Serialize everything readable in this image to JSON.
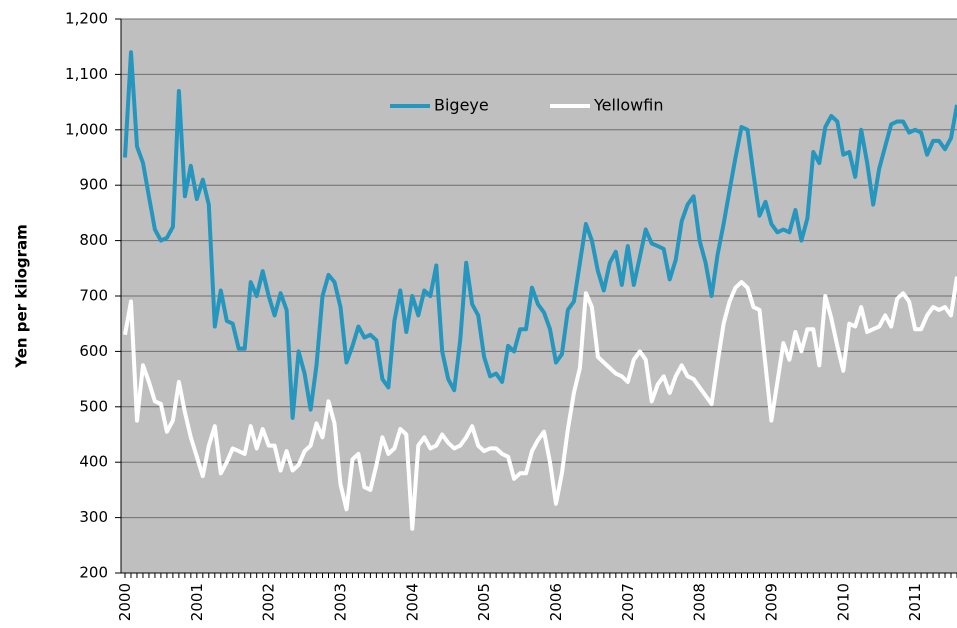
{
  "chart_data": {
    "type": "line",
    "y_label": "Yen per kilogram",
    "categories": [
      "2000",
      null,
      null,
      null,
      null,
      null,
      null,
      null,
      null,
      null,
      null,
      null,
      "2001",
      null,
      null,
      null,
      null,
      null,
      null,
      null,
      null,
      null,
      null,
      null,
      "2002",
      null,
      null,
      null,
      null,
      null,
      null,
      null,
      null,
      null,
      null,
      null,
      "2003",
      null,
      null,
      null,
      null,
      null,
      null,
      null,
      null,
      null,
      null,
      null,
      "2004",
      null,
      null,
      null,
      null,
      null,
      null,
      null,
      null,
      null,
      null,
      null,
      "2005",
      null,
      null,
      null,
      null,
      null,
      null,
      null,
      null,
      null,
      null,
      null,
      "2006",
      null,
      null,
      null,
      null,
      null,
      null,
      null,
      null,
      null,
      null,
      null,
      "2007",
      null,
      null,
      null,
      null,
      null,
      null,
      null,
      null,
      null,
      null,
      null,
      "2008",
      null,
      null,
      null,
      null,
      null,
      null,
      null,
      null,
      null,
      null,
      null,
      "2009",
      null,
      null,
      null,
      null,
      null,
      null,
      null,
      null,
      null,
      null,
      null,
      "2010",
      null,
      null,
      null,
      null,
      null,
      null,
      null,
      null,
      null,
      null,
      null,
      "2011",
      null,
      null,
      null,
      null,
      null,
      null,
      null
    ],
    "series": [
      {
        "name": "Bigeye",
        "color": "#2596be",
        "values": [
          950,
          1140,
          970,
          940,
          880,
          820,
          800,
          805,
          825,
          1070,
          880,
          935,
          875,
          910,
          865,
          645,
          710,
          655,
          650,
          605,
          605,
          725,
          700,
          745,
          700,
          665,
          705,
          675,
          480,
          600,
          560,
          495,
          575,
          700,
          738,
          725,
          680,
          580,
          610,
          645,
          625,
          630,
          620,
          550,
          535,
          655,
          710,
          635,
          700,
          665,
          710,
          700,
          755,
          600,
          550,
          530,
          620,
          760,
          685,
          665,
          590,
          555,
          560,
          545,
          610,
          600,
          640,
          640,
          715,
          685,
          670,
          640,
          580,
          595,
          675,
          690,
          760,
          830,
          800,
          745,
          710,
          760,
          780,
          720,
          790,
          720,
          770,
          820,
          795,
          790,
          785,
          730,
          765,
          835,
          865,
          880,
          800,
          760,
          700,
          775,
          830,
          890,
          950,
          1005,
          1000,
          920,
          845,
          870,
          830,
          815,
          820,
          815,
          855,
          800,
          840,
          960,
          940,
          1005,
          1025,
          1015,
          955,
          960,
          915,
          1000,
          940,
          865,
          930,
          970,
          1010,
          1015,
          1015,
          995,
          1000,
          995,
          955,
          980,
          980,
          965,
          985,
          1045
        ]
      },
      {
        "name": "Yellowfin",
        "color": "#ffffff",
        "values": [
          630,
          690,
          475,
          575,
          545,
          510,
          505,
          455,
          475,
          545,
          490,
          445,
          410,
          375,
          430,
          465,
          380,
          400,
          425,
          420,
          415,
          465,
          425,
          460,
          430,
          430,
          385,
          420,
          385,
          395,
          420,
          430,
          470,
          445,
          510,
          470,
          360,
          315,
          405,
          415,
          355,
          350,
          395,
          445,
          415,
          425,
          460,
          450,
          280,
          430,
          445,
          425,
          430,
          450,
          435,
          425,
          430,
          445,
          465,
          430,
          420,
          425,
          425,
          415,
          410,
          370,
          380,
          380,
          420,
          440,
          455,
          400,
          325,
          380,
          460,
          525,
          570,
          705,
          680,
          590,
          580,
          570,
          560,
          555,
          545,
          585,
          600,
          585,
          510,
          540,
          555,
          525,
          555,
          575,
          555,
          550,
          535,
          520,
          505,
          580,
          650,
          690,
          715,
          725,
          715,
          680,
          675,
          575,
          475,
          545,
          615,
          585,
          635,
          600,
          640,
          640,
          575,
          700,
          660,
          610,
          565,
          650,
          645,
          680,
          635,
          640,
          645,
          665,
          645,
          695,
          705,
          690,
          640,
          640,
          665,
          680,
          675,
          680,
          665,
          735
        ]
      }
    ],
    "ylim": [
      200,
      1200
    ],
    "yticks": [
      200,
      300,
      400,
      500,
      600,
      700,
      800,
      900,
      {
        "value": 1000,
        "label": "1,000"
      },
      {
        "value": 1100,
        "label": "1,100"
      },
      {
        "value": 1200,
        "label": "1,200"
      }
    ],
    "grid": true,
    "legend": "top"
  }
}
